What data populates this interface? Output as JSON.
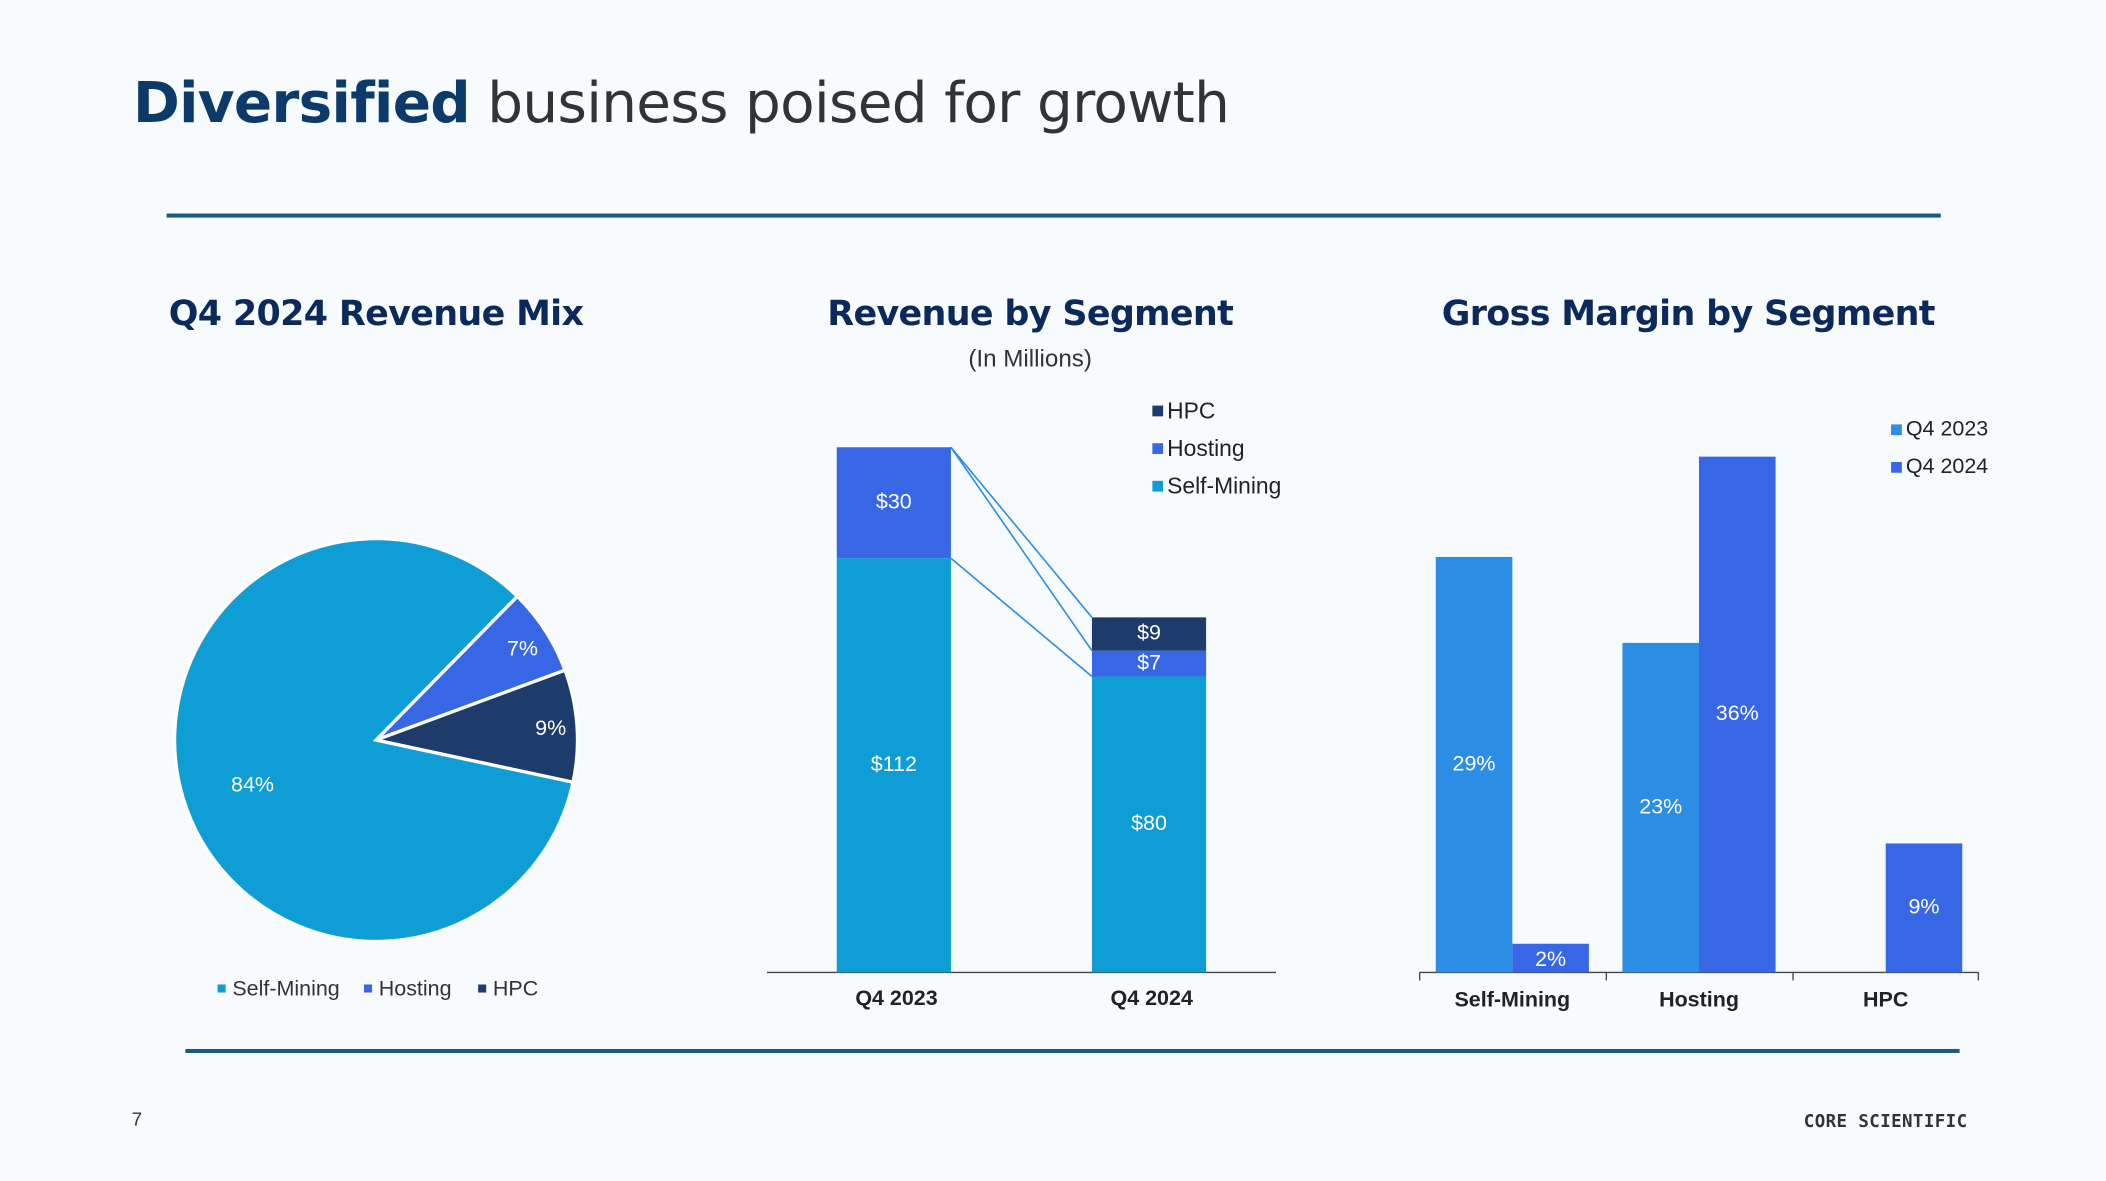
{
  "title": {
    "bold": "Diversified",
    "rest": " business poised for growth"
  },
  "page_number": "7",
  "logo_text": "CORE SCIENTIFIC",
  "colors": {
    "self_mining": "#0e9dd5",
    "hosting": "#3867e6",
    "hpc": "#1d3b6b",
    "q4_2023": "#2b8de3",
    "q4_2024": "#3867e6"
  },
  "chart_data": [
    {
      "type": "pie",
      "title": "Q4 2024 Revenue Mix",
      "labels": [
        "Self-Mining",
        "Hosting",
        "HPC"
      ],
      "values": [
        84,
        7,
        9
      ],
      "data_labels": [
        "84%",
        "7%",
        "9%"
      ],
      "legend": "bottom"
    },
    {
      "type": "bar",
      "stacked": true,
      "title": "Revenue by Segment",
      "subtitle": "(In Millions)",
      "categories": [
        "Q4 2023",
        "Q4 2024"
      ],
      "series": [
        {
          "name": "Self-Mining",
          "values": [
            112,
            80
          ],
          "labels": [
            "$112",
            "$80"
          ]
        },
        {
          "name": "Hosting",
          "values": [
            30,
            7
          ],
          "labels": [
            "$30",
            "$7"
          ]
        },
        {
          "name": "HPC",
          "values": [
            0,
            9
          ],
          "labels": [
            "",
            "$9"
          ]
        }
      ],
      "legend_order": [
        "HPC",
        "Hosting",
        "Self-Mining"
      ],
      "legend": "top-right"
    },
    {
      "type": "bar",
      "title": "Gross Margin by Segment",
      "categories": [
        "Self-Mining",
        "Hosting",
        "HPC"
      ],
      "series": [
        {
          "name": "Q4 2023",
          "values": [
            29,
            23,
            null
          ],
          "labels": [
            "29%",
            "23%",
            ""
          ]
        },
        {
          "name": "Q4 2024",
          "values": [
            2,
            36,
            9
          ],
          "labels": [
            "2%",
            "36%",
            "9%"
          ]
        }
      ],
      "legend": "top-right"
    }
  ]
}
